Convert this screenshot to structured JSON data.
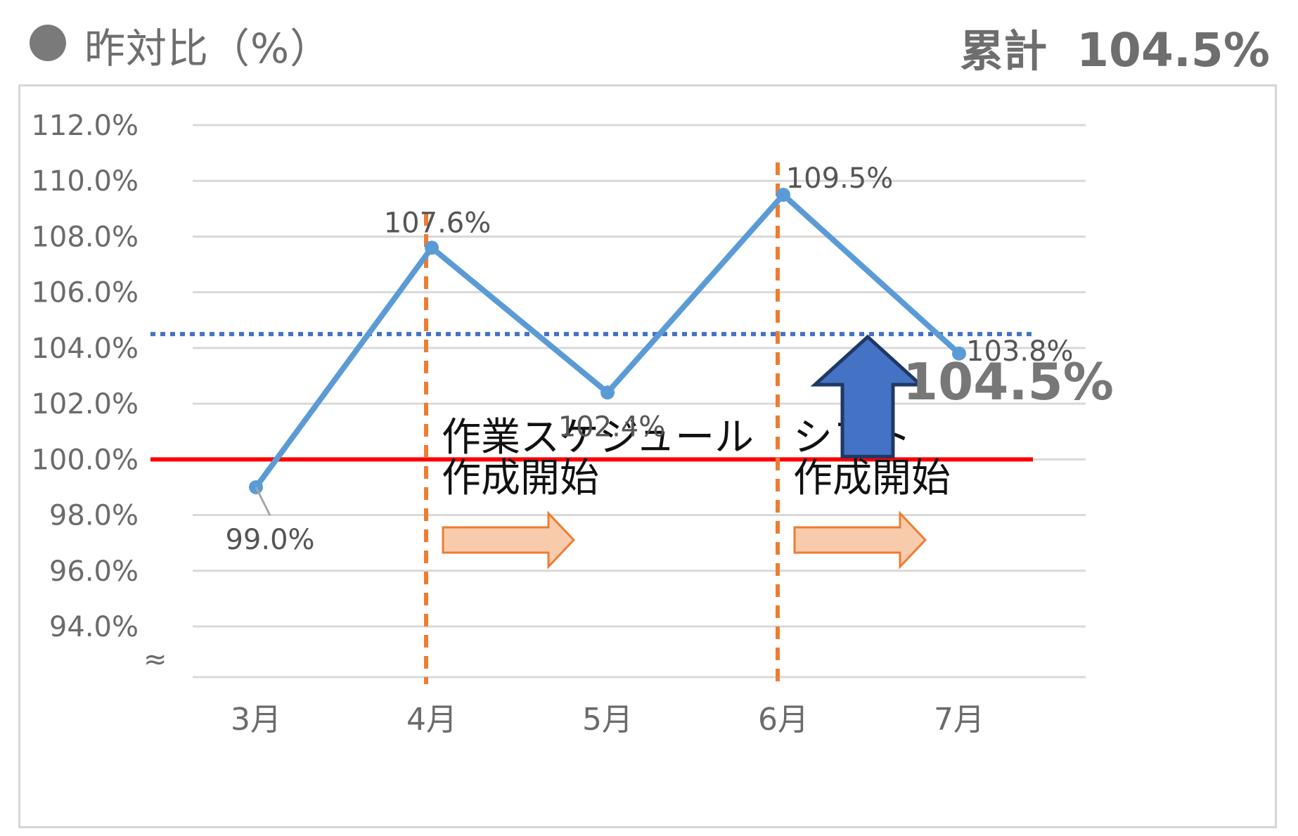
{
  "header": {
    "title": "昨対比（%）",
    "cumulative_label": "累計",
    "cumulative_value": "104.5%"
  },
  "chart_data": {
    "type": "line",
    "categories": [
      "3月",
      "4月",
      "5月",
      "6月",
      "7月"
    ],
    "series": [
      {
        "values": [
          99.0,
          107.6,
          102.4,
          109.5,
          103.8
        ],
        "labels": [
          "99.0%",
          "107.6%",
          "102.4%",
          "109.5%",
          "103.8%"
        ],
        "color": "#5b9bd5"
      }
    ],
    "ylim": [
      92,
      112
    ],
    "yticks": [
      94,
      96,
      98,
      100,
      102,
      104,
      106,
      108,
      110,
      112
    ],
    "ytick_labels": [
      "94.0%",
      "96.0%",
      "98.0%",
      "100.0%",
      "102.0%",
      "104.0%",
      "106.0%",
      "108.0%",
      "110.0%",
      "112.0%"
    ],
    "axis_break_symbol": "≈",
    "reference_lines": [
      {
        "value": 100.0,
        "style": "solid",
        "color": "#ff0000"
      },
      {
        "value": 104.5,
        "style": "dotted",
        "color": "#4472c4"
      }
    ],
    "event_markers": [
      {
        "category": "4月",
        "label_lines": [
          "作業スケジュール",
          "作成開始"
        ],
        "color": "#ed7d31"
      },
      {
        "category": "6月",
        "label_lines": [
          "シフト",
          "作成開始"
        ],
        "color": "#ed7d31"
      }
    ],
    "cumulative_annotation": {
      "label": "104.5%",
      "arrow_color": "#4472c4"
    },
    "grid": true,
    "legend": "none"
  }
}
